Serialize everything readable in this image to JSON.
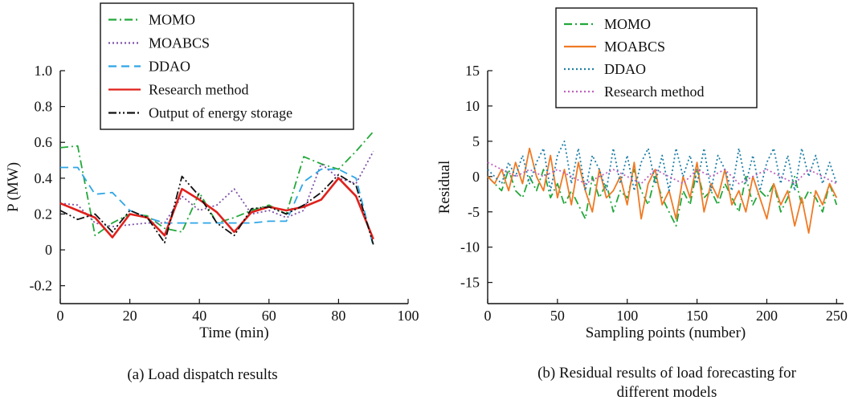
{
  "chart_data": [
    {
      "type": "line",
      "caption": "(a) Load dispatch results",
      "xlabel": "Time (min)",
      "ylabel": "P (MW)",
      "xlim": [
        0,
        100
      ],
      "ylim": [
        -0.3,
        1.0
      ],
      "xticks": [
        "0",
        "20",
        "40",
        "60",
        "80",
        "100"
      ],
      "yticks": [
        "1.0",
        "0.8",
        "0.6",
        "0.4",
        "0.2",
        "0",
        "-0.2"
      ],
      "ytick_values": [
        1.0,
        0.8,
        0.6,
        0.4,
        0.2,
        0,
        -0.2
      ],
      "xtick_values": [
        0,
        20,
        40,
        60,
        80,
        100
      ],
      "grid": false,
      "legend_position": "top-center",
      "series": [
        {
          "name": "MOMO",
          "color": "#22a83a",
          "dash": "dash-dot",
          "x": [
            0,
            5,
            10,
            15,
            20,
            25,
            30,
            35,
            40,
            45,
            50,
            55,
            60,
            65,
            70,
            75,
            80,
            85,
            90
          ],
          "y": [
            0.57,
            0.58,
            0.08,
            0.15,
            0.2,
            0.19,
            0.12,
            0.1,
            0.32,
            0.15,
            0.18,
            0.22,
            0.25,
            0.2,
            0.52,
            0.48,
            0.45,
            0.55,
            0.66
          ]
        },
        {
          "name": "MOABCS",
          "color": "#7d4fa8",
          "dash": "dotted",
          "x": [
            0,
            5,
            10,
            15,
            20,
            25,
            30,
            35,
            40,
            45,
            50,
            55,
            60,
            65,
            70,
            75,
            80,
            85,
            90
          ],
          "y": [
            0.26,
            0.25,
            0.15,
            0.13,
            0.14,
            0.15,
            0.15,
            0.3,
            0.22,
            0.25,
            0.34,
            0.2,
            0.22,
            0.18,
            0.22,
            0.48,
            0.4,
            0.37,
            0.55
          ]
        },
        {
          "name": "DDAO",
          "color": "#2ea6e6",
          "dash": "dashed",
          "x": [
            0,
            5,
            10,
            15,
            20,
            25,
            30,
            35,
            40,
            45,
            50,
            55,
            60,
            65,
            70,
            75,
            80,
            85,
            90
          ],
          "y": [
            0.46,
            0.46,
            0.31,
            0.32,
            0.22,
            0.18,
            0.15,
            0.15,
            0.15,
            0.15,
            0.15,
            0.15,
            0.16,
            0.16,
            0.38,
            0.45,
            0.45,
            0.4,
            0.02
          ]
        },
        {
          "name": "Research method",
          "color": "#e0201b",
          "dash": "solid",
          "x": [
            0,
            5,
            10,
            15,
            20,
            25,
            30,
            35,
            40,
            45,
            50,
            55,
            60,
            65,
            70,
            75,
            80,
            85,
            90
          ],
          "y": [
            0.26,
            0.22,
            0.18,
            0.07,
            0.2,
            0.18,
            0.08,
            0.34,
            0.28,
            0.21,
            0.1,
            0.21,
            0.24,
            0.22,
            0.24,
            0.28,
            0.4,
            0.3,
            0.06
          ]
        },
        {
          "name": "Output of energy storage",
          "color": "#111111",
          "dash": "dash-dot-dot",
          "x": [
            0,
            5,
            10,
            15,
            20,
            25,
            30,
            35,
            40,
            45,
            50,
            55,
            60,
            65,
            70,
            75,
            80,
            85,
            90
          ],
          "y": [
            0.22,
            0.17,
            0.2,
            0.1,
            0.22,
            0.18,
            0.04,
            0.41,
            0.3,
            0.15,
            0.08,
            0.23,
            0.24,
            0.2,
            0.25,
            0.32,
            0.42,
            0.36,
            0.03
          ]
        }
      ]
    },
    {
      "type": "line",
      "caption_lines": [
        "(b) Residual results of load forecasting for",
        "different models"
      ],
      "xlabel": "Sampling points (number)",
      "ylabel": "Residual",
      "xlim": [
        0,
        255
      ],
      "ylim": [
        -18,
        15
      ],
      "xticks": [
        "0",
        "50",
        "100",
        "150",
        "200",
        "250"
      ],
      "xtick_values": [
        0,
        50,
        100,
        150,
        200,
        250
      ],
      "yticks": [
        "15",
        "10",
        "5",
        "0",
        "-5",
        "-10",
        "-15"
      ],
      "ytick_values": [
        15,
        10,
        5,
        0,
        -5,
        -10,
        -15
      ],
      "grid": false,
      "legend_position": "top-center",
      "series": [
        {
          "name": "MOMO",
          "color": "#22a83a",
          "dash": "dash-dot",
          "x": [
            0,
            5,
            10,
            15,
            20,
            25,
            30,
            35,
            40,
            45,
            50,
            55,
            60,
            65,
            70,
            75,
            80,
            85,
            90,
            95,
            100,
            105,
            110,
            115,
            120,
            125,
            130,
            135,
            140,
            145,
            150,
            155,
            160,
            165,
            170,
            175,
            180,
            185,
            190,
            195,
            200,
            205,
            210,
            215,
            220,
            225,
            230,
            235,
            240,
            245,
            250
          ],
          "y": [
            0,
            -1,
            -2,
            1,
            -2,
            -3,
            0,
            -2,
            1,
            -3,
            -1,
            -4,
            -2,
            -4,
            -6,
            0,
            -3,
            -1,
            -5,
            -2,
            -3,
            1,
            -2,
            -4,
            0,
            -3,
            -5,
            -7,
            -2,
            -4,
            1,
            -3,
            -2,
            -4,
            -1,
            -3,
            -5,
            0,
            -4,
            -2,
            -3,
            -1,
            -5,
            -3,
            0,
            -4,
            -2,
            -3,
            -5,
            -1,
            -4
          ]
        },
        {
          "name": "MOABCS",
          "color": "#ef7a24",
          "dash": "solid",
          "x": [
            0,
            5,
            10,
            15,
            20,
            25,
            30,
            35,
            40,
            45,
            50,
            55,
            60,
            65,
            70,
            75,
            80,
            85,
            90,
            95,
            100,
            105,
            110,
            115,
            120,
            125,
            130,
            135,
            140,
            145,
            150,
            155,
            160,
            165,
            170,
            175,
            180,
            185,
            190,
            195,
            200,
            205,
            210,
            215,
            220,
            225,
            230,
            235,
            240,
            245,
            250
          ],
          "y": [
            0,
            -1,
            1,
            -2,
            2,
            -1,
            4,
            0,
            -2,
            3,
            -3,
            1,
            -4,
            2,
            -2,
            -5,
            1,
            -3,
            -2,
            0,
            -4,
            2,
            -6,
            -1,
            1,
            -4,
            -2,
            -6,
            0,
            -3,
            2,
            -5,
            -1,
            -3,
            1,
            -4,
            -2,
            -5,
            0,
            -3,
            -6,
            -1,
            -4,
            -2,
            -7,
            -3,
            -8,
            -2,
            -4,
            -1,
            -3
          ]
        },
        {
          "name": "DDAO",
          "color": "#1f7fa6",
          "dash": "dotted",
          "x": [
            0,
            5,
            10,
            15,
            20,
            25,
            30,
            35,
            40,
            45,
            50,
            55,
            60,
            65,
            70,
            75,
            80,
            85,
            90,
            95,
            100,
            105,
            110,
            115,
            120,
            125,
            130,
            135,
            140,
            145,
            150,
            155,
            160,
            165,
            170,
            175,
            180,
            185,
            190,
            195,
            200,
            205,
            210,
            215,
            220,
            225,
            230,
            235,
            240,
            245,
            250
          ],
          "y": [
            1,
            0,
            -1,
            2,
            0,
            3,
            -1,
            2,
            4,
            -2,
            3,
            5,
            -1,
            4,
            -2,
            3,
            1,
            -2,
            4,
            -1,
            3,
            -2,
            2,
            4,
            -1,
            3,
            -2,
            4,
            0,
            3,
            -1,
            4,
            -2,
            3,
            1,
            -2,
            4,
            -1,
            3,
            -2,
            2,
            4,
            -1,
            3,
            -2,
            4,
            0,
            3,
            -1,
            2,
            -1
          ]
        },
        {
          "name": "Research method",
          "color": "#c060c0",
          "dash": "dotted",
          "x": [
            0,
            10,
            20,
            30,
            40,
            50,
            60,
            70,
            80,
            90,
            100,
            110,
            120,
            130,
            140,
            150,
            160,
            170,
            180,
            190,
            200,
            210,
            220,
            230,
            240,
            250
          ],
          "y": [
            2,
            1,
            0,
            1,
            0,
            1,
            0,
            -1,
            0,
            1,
            0,
            -1,
            1,
            0,
            -1,
            1,
            0,
            1,
            -1,
            0,
            1,
            0,
            -1,
            1,
            0,
            -1
          ]
        }
      ]
    }
  ]
}
